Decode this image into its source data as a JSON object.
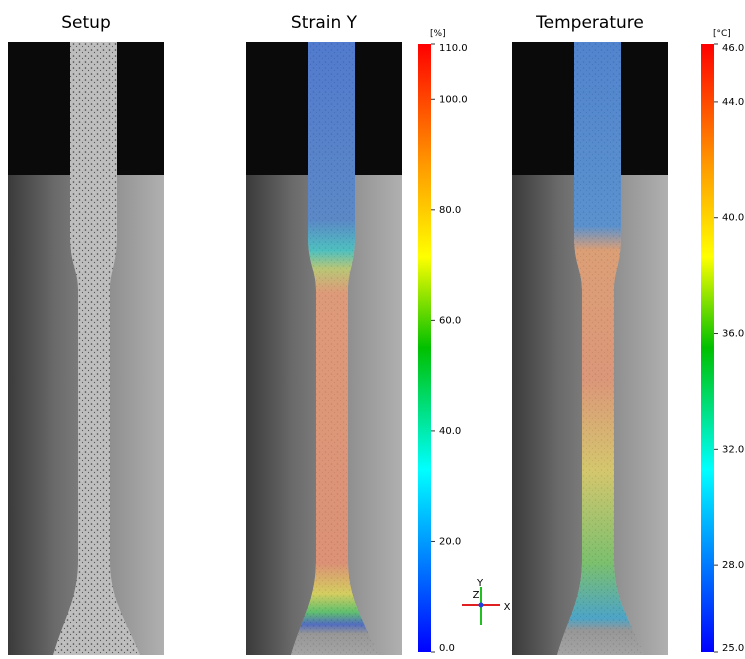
{
  "panels": [
    {
      "title": "Setup"
    },
    {
      "title": "Strain Y"
    },
    {
      "title": "Temperature"
    }
  ],
  "colorbars": [
    {
      "unit": "[%]",
      "lim": [
        0,
        110
      ],
      "ticks": [
        {
          "value": 110,
          "label": "110.0"
        },
        {
          "value": 100,
          "label": "100.0"
        },
        {
          "value": 80,
          "label": "80.0"
        },
        {
          "value": 60,
          "label": "60.0"
        },
        {
          "value": 40,
          "label": "40.0"
        },
        {
          "value": 20,
          "label": "20.0"
        },
        {
          "value": 0,
          "label": "0.0"
        }
      ]
    },
    {
      "unit": "[°C]",
      "lim": [
        25,
        46
      ],
      "ticks": [
        {
          "value": 46,
          "label": "46.0"
        },
        {
          "value": 44,
          "label": "44.0"
        },
        {
          "value": 40,
          "label": "40.0"
        },
        {
          "value": 36,
          "label": "36.0"
        },
        {
          "value": 32,
          "label": "32.0"
        },
        {
          "value": 28,
          "label": "28.0"
        },
        {
          "value": 25,
          "label": "25.0"
        }
      ]
    }
  ],
  "axes": {
    "y": "Y",
    "z": "Z",
    "x": "X"
  }
}
